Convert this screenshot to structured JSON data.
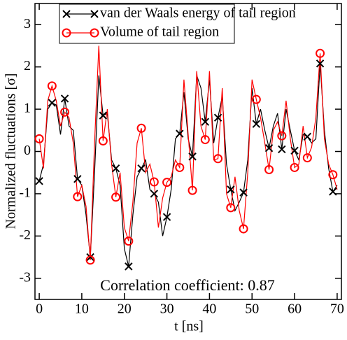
{
  "chart_data": {
    "type": "line",
    "xlabel": "t [ns]",
    "ylabel": "Normalized fluctuations [σ]",
    "annotation": "Correlation coefficient: 0.87",
    "xlim": [
      -1,
      71
    ],
    "xticks": [
      0,
      10,
      20,
      30,
      40,
      50,
      60,
      70
    ],
    "ylim": [
      -3.5,
      3.5
    ],
    "yticks": [
      -3,
      -2,
      -1,
      0,
      1,
      2,
      3
    ],
    "marker_every": 3,
    "legend": "upper left",
    "x": [
      0,
      1,
      2,
      3,
      4,
      5,
      6,
      7,
      8,
      9,
      10,
      11,
      12,
      13,
      14,
      15,
      16,
      17,
      18,
      19,
      20,
      21,
      22,
      23,
      24,
      25,
      26,
      27,
      28,
      29,
      30,
      31,
      32,
      33,
      34,
      35,
      36,
      37,
      38,
      39,
      40,
      41,
      42,
      43,
      44,
      45,
      46,
      47,
      48,
      49,
      50,
      51,
      52,
      53,
      54,
      55,
      56,
      57,
      58,
      59,
      60,
      61,
      62,
      63,
      64,
      65,
      66,
      67,
      68,
      69,
      70
    ],
    "series": [
      {
        "name": "van der Waals energy of tail region",
        "color": "#000000",
        "marker": "x",
        "values": [
          -0.7,
          -0.3,
          1.0,
          1.15,
          1.1,
          0.4,
          1.25,
          0.6,
          0.5,
          -0.65,
          -0.8,
          -1.5,
          -2.5,
          -0.5,
          1.8,
          0.85,
          0.9,
          -0.2,
          -0.4,
          -0.8,
          -2.3,
          -2.72,
          -1.5,
          -0.6,
          -0.4,
          -0.2,
          -0.9,
          -1.0,
          -1.2,
          -2.0,
          -1.55,
          -0.9,
          0.3,
          0.42,
          1.4,
          0.3,
          -0.12,
          1.8,
          1.5,
          0.7,
          1.7,
          0.2,
          0.8,
          1.3,
          -0.3,
          -0.9,
          -1.4,
          -1.2,
          -0.97,
          -0.2,
          1.5,
          0.65,
          1.0,
          0.5,
          0.08,
          0.6,
          0.9,
          0.05,
          1.0,
          0.5,
          0.02,
          -0.2,
          0.4,
          0.35,
          0.2,
          0.3,
          2.08,
          0.5,
          -0.4,
          -0.95,
          -0.8
        ]
      },
      {
        "name": "Volume of tail region",
        "color": "#ff0000",
        "marker": "circle",
        "values": [
          0.3,
          -0.4,
          1.2,
          1.55,
          1.2,
          0.6,
          0.93,
          0.8,
          0.2,
          -1.07,
          -0.8,
          -1.3,
          -2.57,
          0.2,
          2.5,
          0.25,
          1.0,
          -0.3,
          -1.08,
          -0.5,
          -1.8,
          -2.12,
          -1.2,
          0.2,
          0.55,
          -0.5,
          -0.3,
          -0.72,
          -1.8,
          -1.1,
          -0.73,
          -0.6,
          -0.2,
          -0.38,
          1.7,
          0.4,
          -0.92,
          1.9,
          0.6,
          0.28,
          1.9,
          -0.2,
          -0.17,
          1.5,
          -1.0,
          -1.33,
          -0.6,
          -1.4,
          -1.83,
          -0.5,
          1.7,
          1.23,
          0.8,
          0.2,
          -0.43,
          0.5,
          0.7,
          0.37,
          1.2,
          0.3,
          -0.38,
          -0.3,
          0.6,
          -0.15,
          0.1,
          0.8,
          2.32,
          0.3,
          -0.3,
          -0.55,
          -0.9
        ]
      }
    ]
  }
}
